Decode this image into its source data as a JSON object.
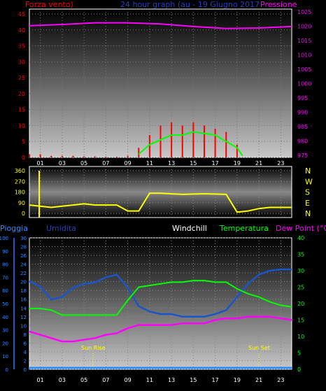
{
  "panel1": {
    "left_title": "Forza vento)",
    "center_title": "24 hour graph (au - 19 Giugno 2017",
    "right_title": "Pressione",
    "left_ticks": [
      "0",
      "5",
      "10",
      "15",
      "20",
      "25",
      "30",
      "35",
      "40",
      "45"
    ],
    "right_ticks": [
      "975",
      "980",
      "985",
      "990",
      "995",
      "1000",
      "1005",
      "1010",
      "1015",
      "1020",
      "1025"
    ]
  },
  "panel2": {
    "left_ticks": [
      "0",
      "90",
      "180",
      "270",
      "360"
    ],
    "right_labels": [
      "N",
      "W",
      "S",
      "E",
      "N"
    ]
  },
  "panel3": {
    "label_pioggia": "Pioggia",
    "label_umidita": "Umidita",
    "label_windchill": "Windchill",
    "label_temperatura": "Temperatura",
    "label_dewpoint": "Dew Point (°C)",
    "rain_ticks": [
      "0",
      "2",
      "4",
      "6",
      "8",
      "10",
      "12",
      "14",
      "16",
      "18",
      "20",
      "22",
      "24",
      "26",
      "28",
      "30"
    ],
    "hum_ticks": [
      "0",
      "10",
      "20",
      "30",
      "40",
      "50",
      "60",
      "70",
      "80",
      "90",
      "100"
    ],
    "temp_ticks": [
      "0",
      "5",
      "10",
      "15",
      "20",
      "25",
      "30",
      "35",
      "40"
    ],
    "sunrise": "Sun Rise",
    "sunset": "Sun Set"
  },
  "x_ticks": [
    "01",
    "03",
    "05",
    "07",
    "09",
    "11",
    "13",
    "15",
    "17",
    "19",
    "21",
    "23"
  ],
  "colors": {
    "wind": "#ff0000",
    "gust_avg": "#00ff00",
    "pressure": "#ff00ff",
    "direction": "#ffff00",
    "humidity": "#1a56c8",
    "temperature": "#00ff00",
    "dewpoint": "#ff00ff",
    "rain": "#2a8cff"
  },
  "chart_data": [
    {
      "type": "line",
      "x_unit": "hour",
      "ylim_left": [
        0,
        45
      ],
      "ylim_right": [
        975,
        1025
      ],
      "series": [
        {
          "name": "Forza vento",
          "axis": "left",
          "x": [
            0,
            1,
            2,
            3,
            4,
            5,
            6,
            7,
            8,
            9,
            10,
            11,
            12,
            13,
            14,
            15,
            16,
            17,
            18,
            19,
            20,
            21,
            22,
            23,
            24
          ],
          "values": [
            1,
            1,
            0.5,
            0.5,
            0.5,
            0.3,
            0.3,
            0.2,
            0.2,
            0.5,
            3,
            7,
            10,
            11,
            10,
            11,
            10,
            9,
            8,
            4,
            0,
            0,
            0,
            0,
            0
          ]
        },
        {
          "axis": "left",
          "x": [
            10,
            11,
            12,
            13,
            14,
            15,
            16,
            17,
            18,
            19,
            19.5
          ],
          "values": [
            1,
            4,
            5.5,
            7,
            7,
            8,
            7.5,
            7,
            5,
            3,
            0.5
          ]
        },
        {
          "name": "Pressione",
          "axis": "right",
          "x": [
            0,
            3,
            6,
            9,
            12,
            15,
            18,
            21,
            24
          ],
          "values": [
            1020.2,
            1020.6,
            1021.2,
            1021.2,
            1020.8,
            1019.9,
            1019.2,
            1019.4,
            1019.9
          ]
        }
      ]
    },
    {
      "type": "line",
      "ylim": [
        0,
        360
      ],
      "series": [
        {
          "x": [
            0,
            2,
            3,
            4,
            5,
            6,
            7,
            8,
            9,
            10,
            11,
            12,
            14,
            16,
            18,
            19,
            20,
            21,
            22,
            24
          ],
          "values": [
            70,
            50,
            60,
            70,
            80,
            70,
            70,
            70,
            20,
            20,
            170,
            170,
            160,
            165,
            160,
            10,
            20,
            40,
            50,
            50
          ]
        }
      ]
    },
    {
      "type": "line",
      "series": [
        {
          "name": "Umidita",
          "axis": "humidity",
          "ylim": [
            0,
            100
          ],
          "x": [
            0,
            1,
            2,
            3,
            4,
            5,
            6,
            7,
            8,
            9,
            10,
            11,
            12,
            13,
            14,
            15,
            16,
            17,
            18,
            19,
            20,
            21,
            22,
            23,
            24
          ],
          "values": [
            67,
            63,
            53,
            55,
            62,
            65,
            66,
            70,
            72,
            62,
            48,
            44,
            42,
            42,
            40,
            40,
            40,
            42,
            45,
            55,
            65,
            72,
            75,
            76,
            76
          ]
        },
        {
          "name": "Temperatura",
          "axis": "temp",
          "ylim": [
            0,
            40
          ],
          "x": [
            0,
            1,
            2,
            3,
            4,
            5,
            6,
            7,
            8,
            9,
            10,
            11,
            12,
            13,
            14,
            15,
            16,
            17,
            18,
            19,
            20,
            21,
            22,
            23,
            24
          ],
          "values": [
            18.5,
            18.5,
            18,
            16.5,
            16.5,
            16.5,
            16.5,
            16.5,
            16.5,
            21,
            25,
            25.5,
            26,
            26.5,
            26.5,
            27,
            27,
            26.5,
            26.5,
            24.5,
            23,
            22,
            20.5,
            19.5,
            19
          ]
        },
        {
          "name": "Dew Point",
          "axis": "temp",
          "ylim": [
            0,
            40
          ],
          "x": [
            0,
            1,
            2,
            3,
            4,
            5,
            6,
            7,
            8,
            9,
            10,
            11,
            12,
            13,
            14,
            15,
            16,
            17,
            18,
            19,
            20,
            21,
            22,
            23,
            24
          ],
          "values": [
            11.5,
            10.5,
            9.5,
            8.5,
            8.5,
            9,
            9.5,
            10.5,
            11,
            12.5,
            13.5,
            13.5,
            13.5,
            13.5,
            14,
            14,
            14,
            15,
            15.5,
            15.5,
            16,
            16,
            16,
            15.5,
            15
          ]
        },
        {
          "name": "Pioggia",
          "axis": "rain",
          "ylim": [
            0,
            30
          ],
          "x": [
            0,
            24
          ],
          "values": [
            0,
            0
          ]
        }
      ]
    }
  ]
}
